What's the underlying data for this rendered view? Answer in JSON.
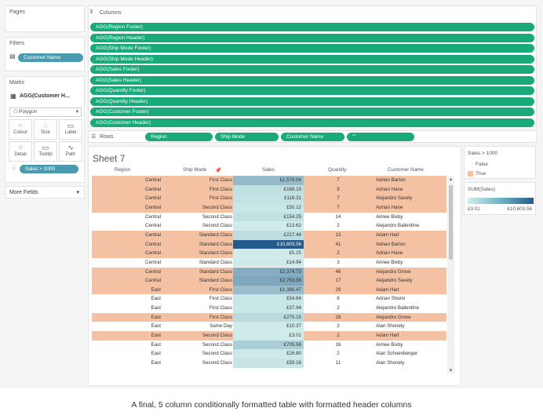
{
  "panels": {
    "pages": "Pages",
    "filters": "Filters",
    "filter_pill": "Customer Name",
    "marks": "Marks",
    "marks_field": "AGG(Customer H...",
    "mark_type": "Polygon",
    "mark_buttons": [
      "Colour",
      "Size",
      "Label",
      "Detail",
      "Tooltip",
      "Path"
    ],
    "mark_pill": "Sales > 1000",
    "more_fields": "More Fields"
  },
  "shelves": {
    "columns_label": "Columns",
    "columns": [
      "AGG(Region Footer)",
      "AGG(Region Header)",
      "AGG(Ship Mode Footer)",
      "AGG(Ship Mode Header)",
      "AGG(Sales Footer)",
      "AGG(Sales Header)",
      "AGG(Quantity Footer)",
      "AGG(Quantity Header)",
      "AGG(Customer Footer)",
      "AGG(Customer Header)"
    ],
    "rows_label": "Rows",
    "rows": [
      "Region",
      "Ship Mode",
      "Customer Name",
      "\"\""
    ]
  },
  "sheet": {
    "title": "Sheet 7",
    "headers": [
      "Region",
      "Ship Mode",
      "Sales",
      "Quantity",
      "Customer Name"
    ],
    "rows": [
      {
        "region": "Central",
        "ship": "First Class",
        "sales": "£1,578.04",
        "qty": "7",
        "cust": "Adrian Barton",
        "hl": true,
        "s": 1578.04
      },
      {
        "region": "Central",
        "ship": "First Class",
        "sales": "£169.19",
        "qty": "9",
        "cust": "Adrian Hane",
        "hl": true,
        "s": 169.19
      },
      {
        "region": "Central",
        "ship": "First Class",
        "sales": "£116.31",
        "qty": "7",
        "cust": "Alejandro Savely",
        "hl": true,
        "s": 116.31
      },
      {
        "region": "Central",
        "ship": "Second Class",
        "sales": "£50.12",
        "qty": "7",
        "cust": "Adrian Hane",
        "hl": true,
        "s": 50.12
      },
      {
        "region": "Central",
        "ship": "Second Class",
        "sales": "£154.25",
        "qty": "14",
        "cust": "Aimee Bixby",
        "hl": false,
        "s": 154.25
      },
      {
        "region": "Central",
        "ship": "Second Class",
        "sales": "£13.62",
        "qty": "2",
        "cust": "Alejandro Ballentine",
        "hl": false,
        "s": 13.62
      },
      {
        "region": "Central",
        "ship": "Standard Class",
        "sales": "£217.44",
        "qty": "13",
        "cust": "Adam Hart",
        "hl": true,
        "s": 217.44
      },
      {
        "region": "Central",
        "ship": "Standard Class",
        "sales": "£10,603.56",
        "qty": "41",
        "cust": "Adrian Barton",
        "hl": true,
        "s": 10603.56
      },
      {
        "region": "Central",
        "ship": "Standard Class",
        "sales": "£5.25",
        "qty": "2",
        "cust": "Adrian Hane",
        "hl": true,
        "s": 5.25
      },
      {
        "region": "Central",
        "ship": "Standard Class",
        "sales": "£14.94",
        "qty": "3",
        "cust": "Aimee Bixby",
        "hl": false,
        "s": 14.94
      },
      {
        "region": "Central",
        "ship": "Standard Class",
        "sales": "£2,374.73",
        "qty": "46",
        "cust": "Alejandro Grove",
        "hl": true,
        "s": 2374.73
      },
      {
        "region": "Central",
        "ship": "Standard Class",
        "sales": "£2,763.56",
        "qty": "17",
        "cust": "Alejandro Savely",
        "hl": true,
        "s": 2763.56
      },
      {
        "region": "East",
        "ship": "First Class",
        "sales": "£1,369.47",
        "qty": "29",
        "cust": "Adam Hart",
        "hl": true,
        "s": 1369.47
      },
      {
        "region": "East",
        "ship": "First Class",
        "sales": "£54.64",
        "qty": "8",
        "cust": "Adrian Shami",
        "hl": false,
        "s": 54.64
      },
      {
        "region": "East",
        "ship": "First Class",
        "sales": "£37.94",
        "qty": "2",
        "cust": "Alejandro Ballentine",
        "hl": false,
        "s": 37.94
      },
      {
        "region": "East",
        "ship": "First Class",
        "sales": "£275.15",
        "qty": "28",
        "cust": "Alejandro Grove",
        "hl": true,
        "s": 275.15
      },
      {
        "region": "East",
        "ship": "Same Day",
        "sales": "£10.37",
        "qty": "2",
        "cust": "Alan Shonely",
        "hl": false,
        "s": 10.37
      },
      {
        "region": "East",
        "ship": "Second Class",
        "sales": "£3.01",
        "qty": "2",
        "cust": "Adam Hart",
        "hl": true,
        "s": 3.01
      },
      {
        "region": "East",
        "ship": "Second Class",
        "sales": "£705.56",
        "qty": "16",
        "cust": "Aimee Bixby",
        "hl": false,
        "s": 705.56
      },
      {
        "region": "East",
        "ship": "Second Class",
        "sales": "£26.80",
        "qty": "2",
        "cust": "Alan Schoenberger",
        "hl": false,
        "s": 26.8
      },
      {
        "region": "East",
        "ship": "Second Class",
        "sales": "£59.18",
        "qty": "11",
        "cust": "Alan Shonely",
        "hl": false,
        "s": 59.18
      }
    ]
  },
  "legend": {
    "title": "Sales > 1000",
    "false_label": "False",
    "true_label": "True",
    "sum_title": "SUM(Sales)",
    "min": "£3.01",
    "max": "£10,603.56"
  },
  "caption": "A final, 5 column conditionally formatted table with formatted header columns",
  "colors": {
    "accent": "#1aaa7a",
    "highlight": "#f4c2a3",
    "sales_light": "#d2eeeb",
    "sales_dark": "#255a8c"
  }
}
